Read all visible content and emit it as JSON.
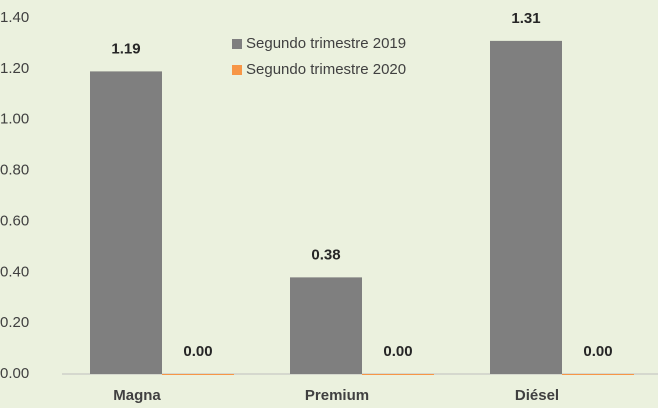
{
  "chart_data": {
    "type": "bar",
    "categories": [
      "Magna",
      "Premium",
      "Diésel"
    ],
    "series": [
      {
        "name": "Segundo trimestre 2019",
        "color": "#7f7f7f",
        "values": [
          1.19,
          0.38,
          1.31
        ],
        "value_labels": [
          "1.19",
          "0.38",
          "1.31"
        ]
      },
      {
        "name": "Segundo trimestre 2020",
        "color": "#f79646",
        "values": [
          0,
          0,
          0
        ],
        "value_labels": [
          "0.00",
          "0.00",
          "0.00"
        ]
      }
    ],
    "ylim": [
      0,
      1.4
    ],
    "yticks": [
      {
        "value": 0,
        "label": "0.00"
      },
      {
        "value": 0.2,
        "label": "0.20"
      },
      {
        "value": 0.4,
        "label": "0.40"
      },
      {
        "value": 0.6,
        "label": "0.60"
      },
      {
        "value": 0.8,
        "label": "0.80"
      },
      {
        "value": 1.0,
        "label": "1.00"
      },
      {
        "value": 1.2,
        "label": "1.20"
      },
      {
        "value": 1.4,
        "label": "1.40"
      }
    ],
    "grid": false,
    "legend": "top"
  }
}
